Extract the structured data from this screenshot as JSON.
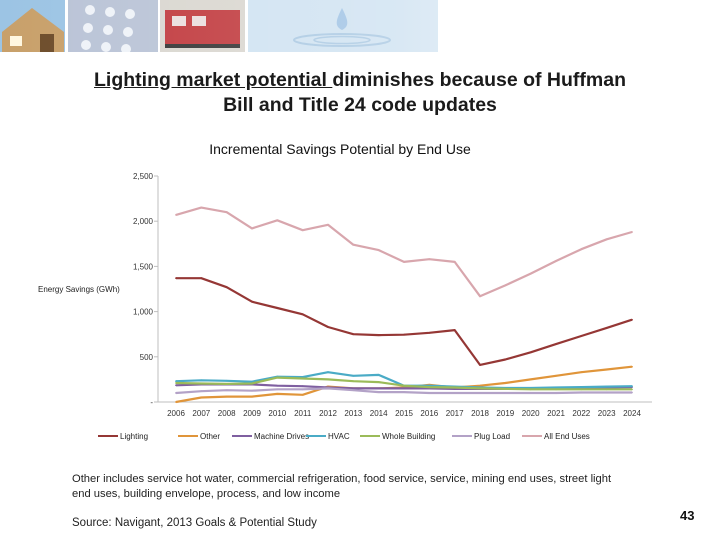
{
  "slide": {
    "title_underlined": "Lighting market potential ",
    "title_rest_line1": "diminishes because of Huffman",
    "title_line2": "Bill and Title 24 code updates",
    "note": "Other includes service hot water, commercial refrigeration, food service, service, mining end uses, street light end uses, building envelope, process, and low income",
    "source": "Source: Navigant, 2013 Goals & Potential Study",
    "page_number": "43"
  },
  "colors": {
    "banner_sky": "#9cc4e4",
    "banner_house": "#c8a06a",
    "banner_phone": "#b9c3d6",
    "banner_train": "#c0383c",
    "banner_water": "#cfe2f1"
  },
  "chart_data": {
    "type": "line",
    "title": "Incremental Savings Potential by End Use",
    "xlabel": "",
    "ylabel": "Energy Savings (GWh)",
    "ylim": [
      0,
      2500
    ],
    "yticks": [
      0,
      500,
      1000,
      1500,
      2000,
      2500
    ],
    "ytick_labels": [
      "-",
      "500",
      "1,000",
      "1,500",
      "2,000",
      "2,500"
    ],
    "categories": [
      "2006",
      "2007",
      "2008",
      "2009",
      "2010",
      "2011",
      "2012",
      "2013",
      "2014",
      "2015",
      "2016",
      "2017",
      "2018",
      "2019",
      "2020",
      "2021",
      "2022",
      "2023",
      "2024"
    ],
    "legend_position": "bottom",
    "series": [
      {
        "name": "Lighting",
        "color": "#953735",
        "values": [
          1370,
          1370,
          1270,
          1110,
          1040,
          970,
          830,
          750,
          740,
          745,
          765,
          795,
          410,
          470,
          550,
          640,
          730,
          820,
          910
        ]
      },
      {
        "name": "Other",
        "color": "#e0953a",
        "values": [
          0,
          50,
          60,
          60,
          90,
          80,
          170,
          150,
          150,
          160,
          190,
          160,
          180,
          210,
          250,
          290,
          330,
          360,
          390
        ]
      },
      {
        "name": "Machine Drives",
        "color": "#7f5fa0",
        "values": [
          185,
          195,
          195,
          195,
          180,
          175,
          160,
          150,
          150,
          150,
          150,
          145,
          145,
          145,
          150,
          150,
          155,
          160,
          165
        ]
      },
      {
        "name": "HVAC",
        "color": "#4aabc6",
        "values": [
          230,
          240,
          235,
          225,
          280,
          275,
          330,
          290,
          300,
          180,
          180,
          170,
          160,
          155,
          155,
          160,
          165,
          170,
          175
        ]
      },
      {
        "name": "Whole Building",
        "color": "#9bbb59",
        "values": [
          210,
          205,
          200,
          205,
          270,
          260,
          250,
          230,
          220,
          180,
          165,
          160,
          150,
          145,
          140,
          140,
          140,
          140,
          140
        ]
      },
      {
        "name": "Plug Load",
        "color": "#b3a2c7",
        "values": [
          100,
          120,
          130,
          125,
          140,
          140,
          150,
          130,
          110,
          110,
          100,
          100,
          100,
          100,
          100,
          100,
          105,
          105,
          105
        ]
      },
      {
        "name": "All End Uses",
        "color": "#d8a6ad",
        "values": [
          2070,
          2150,
          2100,
          1920,
          2010,
          1900,
          1960,
          1740,
          1680,
          1550,
          1580,
          1550,
          1170,
          1290,
          1420,
          1560,
          1690,
          1800,
          1880
        ]
      }
    ]
  }
}
